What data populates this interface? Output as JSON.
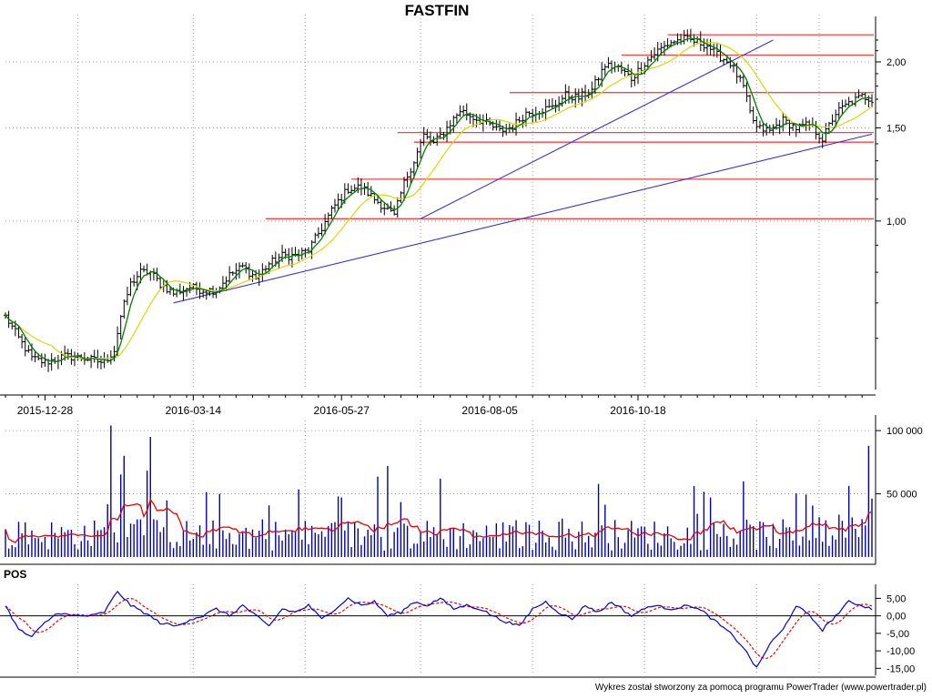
{
  "title": "FASTFIN",
  "footer": "Wykres został stworzony za pomocą programu PowerTrader (www.powertrader.pl)",
  "pos_label": "POS",
  "colors": {
    "bar": "#000000",
    "ma_short": "#008000",
    "ma_long": "#d8d800",
    "support": "#ff4040",
    "trend": "#3333dd",
    "volume": "#0000aa",
    "volume_ma": "#ee0000",
    "pos_line": "#0000dd",
    "pos_signal": "#ee0000",
    "grid": "#9a9a9a"
  },
  "chart_data": [
    {
      "type": "ohlc",
      "name": "price",
      "title": "FASTFIN",
      "x_tick_labels": [
        "2015-12-28",
        "2016-03-14",
        "2016-05-27",
        "2016-08-05",
        "2016-10-18"
      ],
      "y_tick_labels": [
        "1,00",
        "1,50",
        "2,00"
      ],
      "y_scale": "log",
      "ylim": [
        0.48,
        2.4
      ],
      "grid": true,
      "anchors": [
        [
          0,
          0.66
        ],
        [
          4,
          0.6
        ],
        [
          8,
          0.55
        ],
        [
          12,
          0.54
        ],
        [
          18,
          0.555
        ],
        [
          24,
          0.55
        ],
        [
          30,
          0.54
        ],
        [
          33,
          0.57
        ],
        [
          35,
          0.66
        ],
        [
          38,
          0.76
        ],
        [
          41,
          0.8
        ],
        [
          44,
          0.8
        ],
        [
          47,
          0.76
        ],
        [
          51,
          0.73
        ],
        [
          56,
          0.75
        ],
        [
          60,
          0.74
        ],
        [
          64,
          0.74
        ],
        [
          68,
          0.79
        ],
        [
          72,
          0.82
        ],
        [
          76,
          0.78
        ],
        [
          80,
          0.83
        ],
        [
          84,
          0.86
        ],
        [
          88,
          0.86
        ],
        [
          92,
          0.88
        ],
        [
          96,
          0.97
        ],
        [
          100,
          1.07
        ],
        [
          104,
          1.15
        ],
        [
          108,
          1.16
        ],
        [
          112,
          1.1
        ],
        [
          116,
          1.05
        ],
        [
          118,
          1.02
        ],
        [
          121,
          1.18
        ],
        [
          124,
          1.3
        ],
        [
          127,
          1.45
        ],
        [
          130,
          1.4
        ],
        [
          134,
          1.5
        ],
        [
          138,
          1.62
        ],
        [
          142,
          1.57
        ],
        [
          146,
          1.53
        ],
        [
          150,
          1.48
        ],
        [
          154,
          1.51
        ],
        [
          158,
          1.6
        ],
        [
          162,
          1.62
        ],
        [
          166,
          1.64
        ],
        [
          170,
          1.73
        ],
        [
          174,
          1.71
        ],
        [
          178,
          1.77
        ],
        [
          182,
          1.97
        ],
        [
          186,
          1.95
        ],
        [
          190,
          1.86
        ],
        [
          194,
          1.99
        ],
        [
          198,
          2.1
        ],
        [
          202,
          2.18
        ],
        [
          206,
          2.21
        ],
        [
          210,
          2.18
        ],
        [
          213,
          2.15
        ],
        [
          216,
          2.06
        ],
        [
          220,
          1.99
        ],
        [
          224,
          1.79
        ],
        [
          226,
          1.6
        ],
        [
          228,
          1.5
        ],
        [
          232,
          1.48
        ],
        [
          236,
          1.55
        ],
        [
          240,
          1.5
        ],
        [
          244,
          1.52
        ],
        [
          248,
          1.43
        ],
        [
          252,
          1.6
        ],
        [
          256,
          1.67
        ],
        [
          260,
          1.72
        ],
        [
          263,
          1.7
        ]
      ],
      "horizontal_levels": [
        {
          "value": 2.25,
          "from_index": 201
        },
        {
          "value": 2.06,
          "from_index": 187
        },
        {
          "value": 1.75,
          "from_index": 153
        },
        {
          "value": 1.47,
          "from_index": 119
        },
        {
          "value": 1.41,
          "from_index": 124
        },
        {
          "value": 1.2,
          "from_index": 105
        },
        {
          "value": 1.01,
          "from_index": 79
        }
      ],
      "trend_lines": [
        {
          "from_index": 51,
          "from_value": 0.7,
          "to_index": 263,
          "to_value": 1.46
        },
        {
          "from_index": 126,
          "from_value": 1.01,
          "to_index": 233,
          "to_value": 2.2
        }
      ]
    },
    {
      "type": "bar",
      "name": "volume",
      "y_tick_labels": [
        "50 000",
        "100 000"
      ],
      "ylim": [
        0,
        108000
      ],
      "moving_average": true,
      "grid": true
    },
    {
      "type": "line",
      "name": "POS",
      "y_tick_labels": [
        "5,00",
        "0,00",
        "-5,00",
        "-10,00",
        "-15,00"
      ],
      "ylim": [
        -17,
        9
      ],
      "series": [
        {
          "role": "oscillator"
        },
        {
          "role": "signal",
          "style": "dashed"
        }
      ],
      "anchors": [
        [
          0,
          3
        ],
        [
          4,
          -4
        ],
        [
          8,
          -6
        ],
        [
          12,
          -2
        ],
        [
          16,
          1
        ],
        [
          20,
          0
        ],
        [
          26,
          0
        ],
        [
          30,
          1
        ],
        [
          34,
          7
        ],
        [
          38,
          3
        ],
        [
          42,
          1
        ],
        [
          47,
          -2
        ],
        [
          52,
          -3
        ],
        [
          56,
          -1
        ],
        [
          60,
          0
        ],
        [
          64,
          2
        ],
        [
          68,
          0
        ],
        [
          72,
          3
        ],
        [
          76,
          0
        ],
        [
          80,
          -3
        ],
        [
          84,
          2
        ],
        [
          88,
          1
        ],
        [
          92,
          3
        ],
        [
          96,
          -1
        ],
        [
          100,
          2
        ],
        [
          104,
          5
        ],
        [
          108,
          3
        ],
        [
          112,
          4
        ],
        [
          116,
          0
        ],
        [
          120,
          1
        ],
        [
          124,
          4
        ],
        [
          128,
          3
        ],
        [
          132,
          5
        ],
        [
          136,
          2
        ],
        [
          140,
          3
        ],
        [
          144,
          2
        ],
        [
          150,
          -1
        ],
        [
          156,
          -3
        ],
        [
          160,
          2
        ],
        [
          164,
          4
        ],
        [
          168,
          1
        ],
        [
          172,
          -1
        ],
        [
          176,
          3
        ],
        [
          180,
          1
        ],
        [
          184,
          4
        ],
        [
          190,
          0
        ],
        [
          196,
          3
        ],
        [
          202,
          2
        ],
        [
          208,
          3
        ],
        [
          212,
          1
        ],
        [
          216,
          -2
        ],
        [
          220,
          -5
        ],
        [
          224,
          -9
        ],
        [
          228,
          -15
        ],
        [
          232,
          -8
        ],
        [
          236,
          -4
        ],
        [
          240,
          3
        ],
        [
          244,
          0
        ],
        [
          248,
          -4
        ],
        [
          252,
          0
        ],
        [
          256,
          4
        ],
        [
          260,
          3
        ],
        [
          263,
          2
        ]
      ]
    }
  ]
}
